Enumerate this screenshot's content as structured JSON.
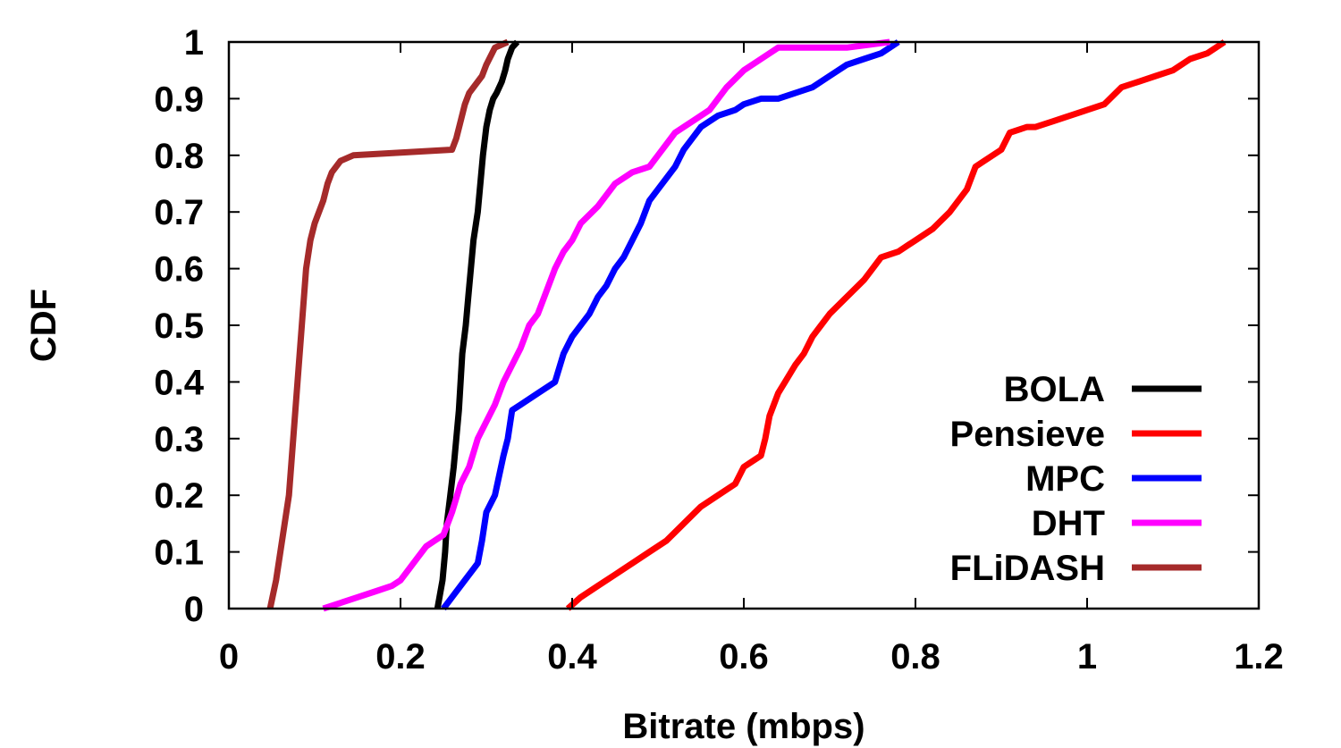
{
  "chart_data": {
    "type": "line",
    "title": "",
    "xlabel": "Bitrate (mbps)",
    "ylabel": "CDF",
    "xlim": [
      0,
      1.2
    ],
    "ylim": [
      0,
      1
    ],
    "grid": false,
    "legend_position": "bottom-right",
    "xticks": [
      "0",
      "0.2",
      "0.4",
      "0.6",
      "0.8",
      "1",
      "1.2"
    ],
    "yticks": [
      "0",
      "0.1",
      "0.2",
      "0.3",
      "0.4",
      "0.5",
      "0.6",
      "0.7",
      "0.8",
      "0.9",
      "1"
    ],
    "series": [
      {
        "name": "BOLA",
        "color": "#000000",
        "x": [
          0.243,
          0.249,
          0.252,
          0.254,
          0.258,
          0.262,
          0.265,
          0.268,
          0.27,
          0.272,
          0.276,
          0.279,
          0.282,
          0.285,
          0.29,
          0.293,
          0.296,
          0.3,
          0.304,
          0.308,
          0.312,
          0.318,
          0.322,
          0.325,
          0.33,
          0.336
        ],
        "y": [
          0.0,
          0.05,
          0.1,
          0.15,
          0.2,
          0.25,
          0.3,
          0.35,
          0.4,
          0.45,
          0.5,
          0.55,
          0.6,
          0.65,
          0.7,
          0.75,
          0.8,
          0.85,
          0.88,
          0.9,
          0.91,
          0.93,
          0.95,
          0.97,
          0.99,
          1.0
        ]
      },
      {
        "name": "Pensieve",
        "color": "#ff0000",
        "x": [
          0.395,
          0.41,
          0.43,
          0.45,
          0.47,
          0.49,
          0.51,
          0.53,
          0.55,
          0.57,
          0.59,
          0.6,
          0.62,
          0.625,
          0.63,
          0.64,
          0.648,
          0.66,
          0.67,
          0.68,
          0.69,
          0.7,
          0.72,
          0.74,
          0.75,
          0.76,
          0.78,
          0.79,
          0.8,
          0.82,
          0.84,
          0.86,
          0.87,
          0.88,
          0.9,
          0.91,
          0.93,
          0.94,
          0.96,
          0.98,
          1.0,
          1.02,
          1.04,
          1.06,
          1.08,
          1.1,
          1.12,
          1.14,
          1.16
        ],
        "y": [
          0.0,
          0.02,
          0.04,
          0.06,
          0.08,
          0.1,
          0.12,
          0.15,
          0.18,
          0.2,
          0.22,
          0.25,
          0.27,
          0.3,
          0.34,
          0.38,
          0.4,
          0.43,
          0.45,
          0.48,
          0.5,
          0.52,
          0.55,
          0.58,
          0.6,
          0.62,
          0.63,
          0.64,
          0.65,
          0.67,
          0.7,
          0.74,
          0.78,
          0.79,
          0.81,
          0.84,
          0.85,
          0.85,
          0.86,
          0.87,
          0.88,
          0.89,
          0.92,
          0.93,
          0.94,
          0.95,
          0.97,
          0.98,
          1.0
        ]
      },
      {
        "name": "MPC",
        "color": "#0000ff",
        "x": [
          0.25,
          0.26,
          0.275,
          0.29,
          0.295,
          0.3,
          0.31,
          0.32,
          0.325,
          0.33,
          0.34,
          0.36,
          0.38,
          0.39,
          0.4,
          0.42,
          0.43,
          0.44,
          0.45,
          0.46,
          0.47,
          0.48,
          0.49,
          0.5,
          0.52,
          0.53,
          0.54,
          0.55,
          0.57,
          0.59,
          0.6,
          0.62,
          0.64,
          0.66,
          0.68,
          0.7,
          0.72,
          0.74,
          0.76,
          0.78
        ],
        "y": [
          0.0,
          0.02,
          0.05,
          0.08,
          0.12,
          0.17,
          0.2,
          0.27,
          0.3,
          0.35,
          0.36,
          0.38,
          0.4,
          0.45,
          0.48,
          0.52,
          0.55,
          0.57,
          0.6,
          0.62,
          0.65,
          0.68,
          0.72,
          0.74,
          0.78,
          0.81,
          0.83,
          0.85,
          0.87,
          0.88,
          0.89,
          0.9,
          0.9,
          0.91,
          0.92,
          0.94,
          0.96,
          0.97,
          0.98,
          1.0
        ]
      },
      {
        "name": "DHT",
        "color": "#ff00ff",
        "x": [
          0.11,
          0.15,
          0.17,
          0.19,
          0.2,
          0.21,
          0.22,
          0.23,
          0.24,
          0.25,
          0.26,
          0.27,
          0.28,
          0.29,
          0.3,
          0.31,
          0.32,
          0.33,
          0.34,
          0.35,
          0.36,
          0.37,
          0.38,
          0.39,
          0.4,
          0.41,
          0.43,
          0.45,
          0.47,
          0.49,
          0.5,
          0.51,
          0.52,
          0.54,
          0.56,
          0.58,
          0.6,
          0.62,
          0.64,
          0.68,
          0.72,
          0.77
        ],
        "y": [
          0.0,
          0.02,
          0.03,
          0.04,
          0.05,
          0.07,
          0.09,
          0.11,
          0.12,
          0.13,
          0.17,
          0.22,
          0.25,
          0.3,
          0.33,
          0.36,
          0.4,
          0.43,
          0.46,
          0.5,
          0.52,
          0.56,
          0.6,
          0.63,
          0.65,
          0.68,
          0.71,
          0.75,
          0.77,
          0.78,
          0.8,
          0.82,
          0.84,
          0.86,
          0.88,
          0.92,
          0.95,
          0.97,
          0.99,
          0.99,
          0.99,
          1.0
        ]
      },
      {
        "name": "FLiDASH",
        "color": "#a52a2a",
        "x": [
          0.048,
          0.055,
          0.06,
          0.065,
          0.07,
          0.075,
          0.08,
          0.085,
          0.09,
          0.095,
          0.1,
          0.11,
          0.115,
          0.12,
          0.13,
          0.145,
          0.26,
          0.265,
          0.27,
          0.275,
          0.28,
          0.29,
          0.295,
          0.3,
          0.31,
          0.325
        ],
        "y": [
          0.0,
          0.05,
          0.1,
          0.15,
          0.2,
          0.3,
          0.4,
          0.5,
          0.6,
          0.65,
          0.68,
          0.72,
          0.75,
          0.77,
          0.79,
          0.8,
          0.81,
          0.83,
          0.86,
          0.89,
          0.91,
          0.93,
          0.94,
          0.96,
          0.99,
          1.0
        ]
      }
    ]
  }
}
